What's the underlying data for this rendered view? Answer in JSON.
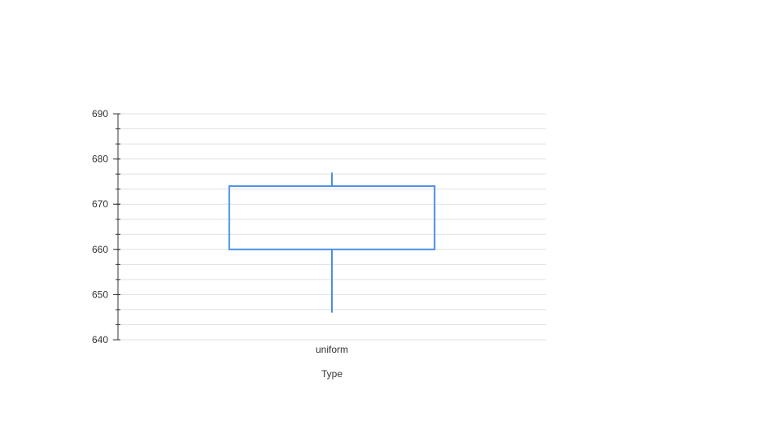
{
  "chart_data": {
    "type": "boxplot",
    "title": "",
    "xlabel": "Type",
    "ylabel": "",
    "ylim": [
      640,
      690
    ],
    "y_major_ticks": [
      640,
      650,
      660,
      670,
      680,
      690
    ],
    "y_minor_step": 3.333,
    "grid": true,
    "categories": [
      "uniform"
    ],
    "boxes": [
      {
        "category": "uniform",
        "whisker_low": 646,
        "q1": 660,
        "q3": 674,
        "whisker_high": 677
      }
    ],
    "colors": {
      "box": "#4a8fe7",
      "grid": "#e0e0e0",
      "axis": "#333333"
    }
  }
}
